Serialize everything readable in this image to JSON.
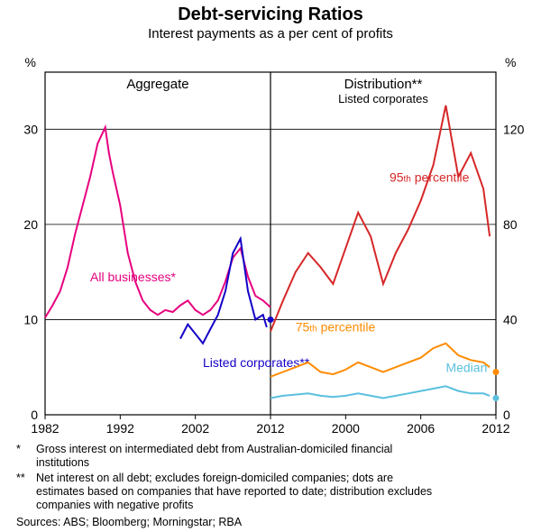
{
  "title": "Debt-servicing Ratios",
  "subtitle": "Interest payments as a per cent of profits",
  "background_color": "#ffffff",
  "border_color": "#000000",
  "grid_color": "#000000",
  "left_panel": {
    "title": "Aggregate",
    "x_start": 1982,
    "x_end": 2012,
    "xticks": [
      1982,
      1992,
      2002,
      2012
    ],
    "ylim": [
      0,
      36
    ],
    "yticks": [
      0,
      10,
      20,
      30
    ],
    "yaxis_unit": "%",
    "series": {
      "all_businesses": {
        "label": "All businesses*",
        "color": "#e6007e",
        "linewidth": 2,
        "data": [
          [
            1982,
            10.2
          ],
          [
            1983,
            11.5
          ],
          [
            1984,
            13.0
          ],
          [
            1985,
            15.5
          ],
          [
            1986,
            19.0
          ],
          [
            1987,
            22.0
          ],
          [
            1988,
            25.0
          ],
          [
            1989,
            28.5
          ],
          [
            1990,
            30.2
          ],
          [
            1990.5,
            27.5
          ],
          [
            1991,
            25.5
          ],
          [
            1992,
            22.0
          ],
          [
            1993,
            17.0
          ],
          [
            1994,
            14.0
          ],
          [
            1995,
            12.0
          ],
          [
            1996,
            11.0
          ],
          [
            1997,
            10.5
          ],
          [
            1998,
            11.0
          ],
          [
            1999,
            10.8
          ],
          [
            2000,
            11.5
          ],
          [
            2001,
            12.0
          ],
          [
            2002,
            11.0
          ],
          [
            2003,
            10.5
          ],
          [
            2004,
            11.0
          ],
          [
            2005,
            12.0
          ],
          [
            2006,
            14.0
          ],
          [
            2007,
            16.5
          ],
          [
            2008,
            17.5
          ],
          [
            2009,
            14.5
          ],
          [
            2010,
            12.5
          ],
          [
            2011,
            12.0
          ],
          [
            2012,
            11.3
          ]
        ]
      },
      "listed_corporates": {
        "label": "Listed corporates**",
        "color": "#1400c8",
        "linewidth": 2,
        "data": [
          [
            2000,
            8.0
          ],
          [
            2001,
            9.5
          ],
          [
            2002,
            8.5
          ],
          [
            2003,
            7.5
          ],
          [
            2004,
            9.0
          ],
          [
            2005,
            10.5
          ],
          [
            2006,
            13.0
          ],
          [
            2007,
            17.0
          ],
          [
            2008,
            18.5
          ],
          [
            2009,
            13.0
          ],
          [
            2010,
            10.0
          ],
          [
            2011,
            10.5
          ],
          [
            2011.5,
            9.2
          ]
        ],
        "dot": [
          2012,
          10.0
        ]
      }
    }
  },
  "right_panel": {
    "title": "Distribution**",
    "subtitle": "Listed corporates",
    "x_start": 1994,
    "x_end": 2012,
    "xticks": [
      2000,
      2006,
      2012
    ],
    "ylim": [
      0,
      144
    ],
    "yticks": [
      0,
      40,
      80,
      120
    ],
    "yaxis_unit": "%",
    "series": {
      "p95": {
        "label": "95th percentile",
        "label_plain": "95",
        "label_suffix": " percentile",
        "color": "#d62728",
        "linewidth": 2,
        "data": [
          [
            1994,
            35
          ],
          [
            1995,
            48
          ],
          [
            1996,
            60
          ],
          [
            1997,
            68
          ],
          [
            1998,
            62
          ],
          [
            1999,
            55
          ],
          [
            2000,
            70
          ],
          [
            2001,
            85
          ],
          [
            2002,
            75
          ],
          [
            2003,
            55
          ],
          [
            2004,
            68
          ],
          [
            2005,
            78
          ],
          [
            2006,
            90
          ],
          [
            2007,
            105
          ],
          [
            2008,
            130
          ],
          [
            2009,
            100
          ],
          [
            2010,
            110
          ],
          [
            2011,
            95
          ],
          [
            2011.5,
            75
          ]
        ]
      },
      "p75": {
        "label": "75th percentile",
        "label_plain": "75",
        "label_suffix": " percentile",
        "color": "#ff8c00",
        "linewidth": 2,
        "data": [
          [
            1994,
            16
          ],
          [
            1995,
            18
          ],
          [
            1996,
            20
          ],
          [
            1997,
            22
          ],
          [
            1998,
            18
          ],
          [
            1999,
            17
          ],
          [
            2000,
            19
          ],
          [
            2001,
            22
          ],
          [
            2002,
            20
          ],
          [
            2003,
            18
          ],
          [
            2004,
            20
          ],
          [
            2005,
            22
          ],
          [
            2006,
            24
          ],
          [
            2007,
            28
          ],
          [
            2008,
            30
          ],
          [
            2009,
            25
          ],
          [
            2010,
            23
          ],
          [
            2011,
            22
          ],
          [
            2011.5,
            20
          ]
        ],
        "dot": [
          2012,
          18
        ]
      },
      "median": {
        "label": "Median",
        "color": "#5bc0de",
        "linewidth": 2,
        "data": [
          [
            1994,
            7
          ],
          [
            1995,
            8
          ],
          [
            1996,
            8.5
          ],
          [
            1997,
            9
          ],
          [
            1998,
            8
          ],
          [
            1999,
            7.5
          ],
          [
            2000,
            8
          ],
          [
            2001,
            9
          ],
          [
            2002,
            8
          ],
          [
            2003,
            7
          ],
          [
            2004,
            8
          ],
          [
            2005,
            9
          ],
          [
            2006,
            10
          ],
          [
            2007,
            11
          ],
          [
            2008,
            12
          ],
          [
            2009,
            10
          ],
          [
            2010,
            9
          ],
          [
            2011,
            9
          ],
          [
            2011.5,
            8
          ]
        ],
        "dot": [
          2012,
          7
        ]
      }
    }
  },
  "footnotes": {
    "star": "*",
    "star_text": "Gross interest on intermediated debt from Australian-domiciled financial institutions",
    "dstar": "**",
    "dstar_text": "Net interest on all debt; excludes foreign-domiciled companies; dots are estimates based on companies that have reported to date; distribution excludes companies with negative profits",
    "sources": "Sources: ABS; Bloomberg; Morningstar; RBA"
  }
}
